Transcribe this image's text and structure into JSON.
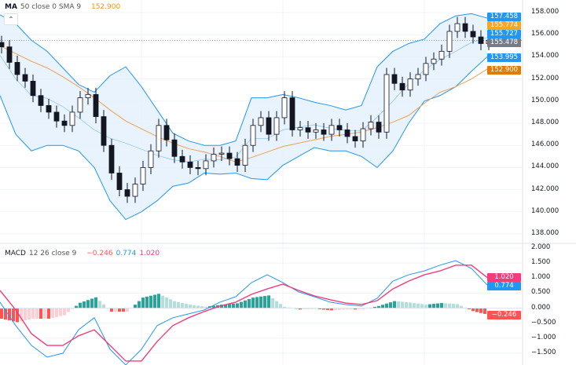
{
  "price_legend": {
    "name": "MA",
    "params": "50 close 0 SMA 9",
    "value": "152.900",
    "value_color": "#f7931a"
  },
  "macd_legend": {
    "name": "MACD",
    "params": "12 26 close 9",
    "hist": "−0.246",
    "macd": "0.774",
    "signal": "1.020"
  },
  "colors": {
    "up": "#26a69a",
    "down": "#131722",
    "bb": "#2196f3",
    "bb_fill": "#e3f0fd",
    "ma": "#f0a050",
    "macd": "#2196f3",
    "signal": "#f23c7c",
    "hist_pos": "#26a69a",
    "hist_pos_light": "#b2dfdb",
    "hist_neg": "#ff5252",
    "hist_neg_light": "#ffcdd2"
  },
  "price_badges": [
    {
      "label": "157.458",
      "color": "#2196f3"
    },
    {
      "label": "155.774",
      "color": "#f5a623"
    },
    {
      "label": "155.727",
      "color": "#2196f3"
    },
    {
      "label": "155.478",
      "color": "#787b86"
    },
    {
      "label": "153.995",
      "color": "#2196f3"
    },
    {
      "label": "152.900",
      "color": "#e27c00"
    }
  ],
  "macd_badges": [
    {
      "label": "1.020",
      "color": "#f23c7c"
    },
    {
      "label": "0.774",
      "color": "#2196f3"
    },
    {
      "label": "−0.246",
      "color": "#ff5252"
    }
  ],
  "chart_data": [
    {
      "type": "candlestick",
      "title": "",
      "ylim": [
        138,
        158
      ],
      "y_ticks": [
        "158.000",
        "156.000",
        "154.000",
        "152.000",
        "150.000",
        "148.000",
        "146.000",
        "144.000",
        "142.000",
        "140.000",
        "138.000"
      ],
      "last_price": 155.478,
      "closes": [
        154.9,
        153.5,
        152.4,
        151.8,
        150.5,
        149.6,
        149.0,
        148.2,
        147.8,
        149.0,
        150.3,
        150.6,
        148.6,
        146.0,
        143.5,
        142.0,
        141.4,
        142.5,
        144.0,
        145.5,
        147.8,
        146.5,
        145.0,
        144.5,
        144.0,
        143.9,
        144.6,
        145.2,
        145.3,
        144.8,
        144.2,
        146.0,
        147.8,
        148.5,
        147.0,
        148.5,
        150.3,
        147.4,
        147.6,
        147.2,
        147.4,
        147.0,
        147.8,
        147.4,
        146.8,
        146.4,
        147.5,
        148.1,
        147.2,
        152.4,
        151.6,
        151.0,
        152.0,
        152.4,
        153.4,
        153.8,
        154.5,
        156.3,
        157.0,
        156.3,
        155.8,
        155.2,
        155.5
      ],
      "ma": [
        155.0,
        154.3,
        153.6,
        153.0,
        152.2,
        151.3,
        150.3,
        149.2,
        148.2,
        147.5,
        146.8,
        146.2,
        145.7,
        145.4,
        145.0,
        144.5,
        144.9,
        145.4,
        145.9,
        146.2,
        146.5,
        146.8,
        147.0,
        147.2,
        147.6,
        148.1,
        148.7,
        149.8,
        150.8,
        151.3,
        152.0,
        152.9
      ],
      "bb_upper": [
        157.8,
        157.0,
        155.5,
        154.5,
        153.0,
        151.5,
        150.8,
        152.3,
        153.1,
        151.3,
        149.2,
        147.1,
        146.4,
        146.0,
        146.0,
        146.4,
        150.3,
        150.3,
        150.6,
        150.3,
        149.9,
        149.6,
        149.2,
        149.6,
        153.1,
        154.5,
        155.2,
        155.6,
        157.0,
        157.7,
        157.9,
        157.5
      ],
      "bb_lower": [
        150.5,
        147.0,
        145.5,
        146.0,
        146.0,
        145.5,
        144.0,
        141.0,
        139.3,
        140.0,
        141.0,
        142.3,
        142.6,
        143.5,
        143.4,
        143.5,
        143.0,
        142.9,
        144.2,
        145.0,
        145.8,
        145.5,
        145.5,
        145.0,
        144.0,
        145.5,
        148.0,
        150.0,
        150.5,
        151.3,
        152.7,
        154.0
      ]
    },
    {
      "type": "line",
      "title": "",
      "ylim": [
        -1.5,
        2.0
      ],
      "y_ticks": [
        "2.000",
        "1.500",
        "1.000",
        "0.500",
        "0.000",
        "−0.500",
        "−1.000",
        "−1.500"
      ],
      "series": [
        {
          "name": "MACD",
          "values": [
            0.2,
            -0.58,
            -1.24,
            -1.63,
            -1.5,
            -0.72,
            -0.32,
            -1.37,
            -1.89,
            -1.37,
            -0.58,
            -0.32,
            -0.19,
            -0.06,
            0.2,
            0.38,
            0.85,
            1.11,
            0.85,
            0.54,
            0.38,
            0.2,
            0.12,
            0.07,
            0.33,
            0.9,
            1.11,
            1.24,
            1.43,
            1.58,
            1.32,
            0.77
          ]
        },
        {
          "name": "Signal",
          "values": [
            0.59,
            -0.06,
            -0.85,
            -1.24,
            -1.24,
            -0.92,
            -0.72,
            -1.24,
            -1.76,
            -1.76,
            -1.11,
            -0.58,
            -0.32,
            -0.11,
            0.07,
            0.2,
            0.46,
            0.64,
            0.8,
            0.59,
            0.41,
            0.28,
            0.17,
            0.12,
            0.25,
            0.64,
            0.9,
            1.11,
            1.24,
            1.43,
            1.43,
            1.02
          ]
        }
      ]
    }
  ]
}
